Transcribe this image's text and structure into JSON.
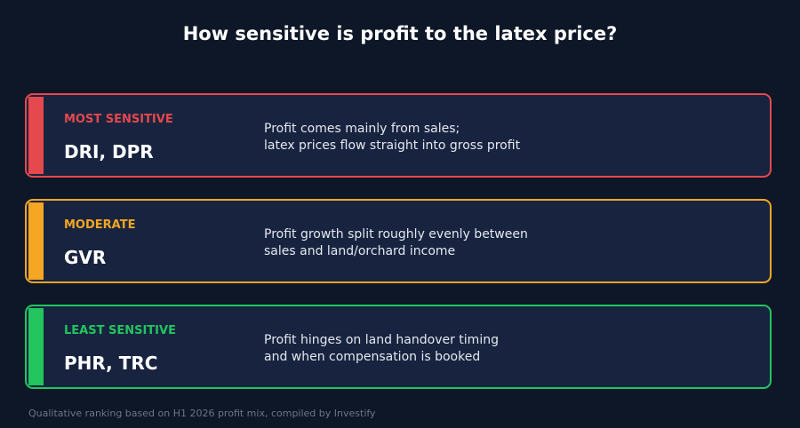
{
  "title": "How sensitive is profit to the latex price?",
  "cards": [
    {
      "level": "MOST SENSITIVE",
      "tickers": "DRI, DPR",
      "description": [
        "Profit comes mainly from sales;",
        "latex prices flow straight into gross profit"
      ]
    },
    {
      "level": "MODERATE",
      "tickers": "GVR",
      "description": [
        "Profit growth split roughly evenly between",
        "sales and land/orchard income"
      ]
    },
    {
      "level": "LEAST SENSITIVE",
      "tickers": "PHR, TRC",
      "description": [
        "Profit hinges on land handover timing",
        "and when compensation is booked"
      ]
    }
  ],
  "footnote": "Qualitative ranking based on H1 2026 profit mix, compiled by Investify"
}
